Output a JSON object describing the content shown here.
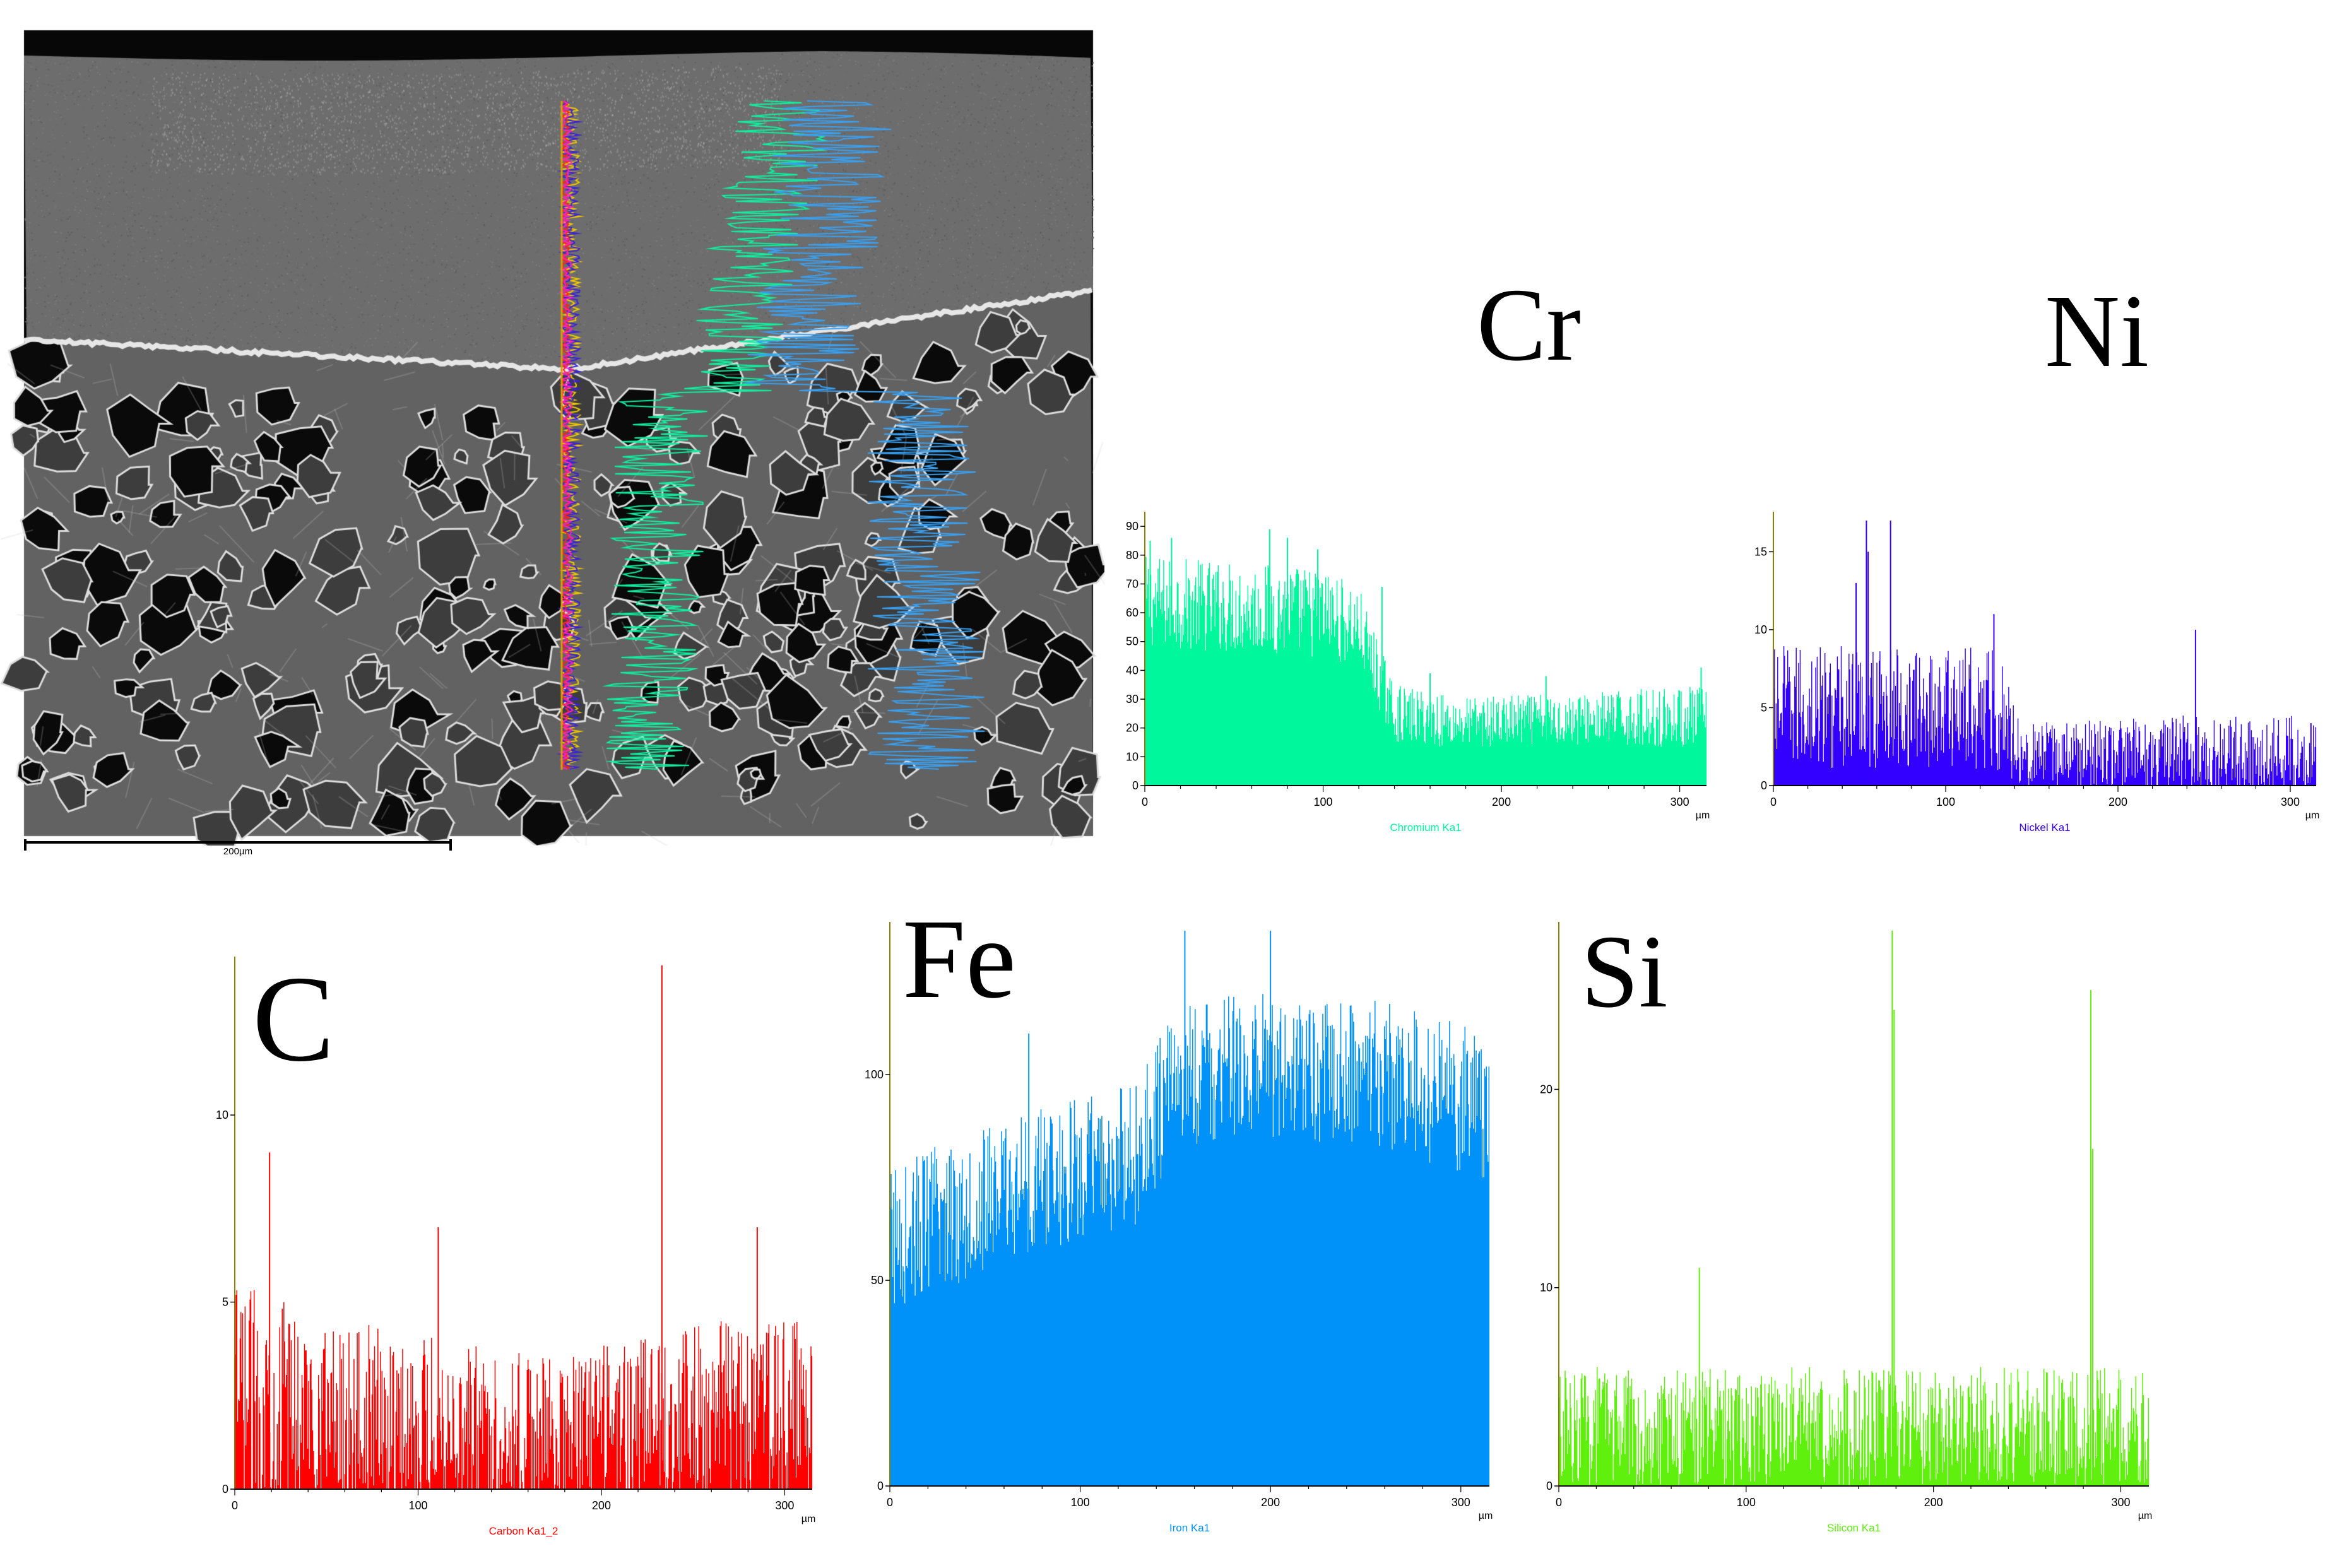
{
  "sem_image": {
    "scale_bar_label": "200µm",
    "trace_colors": {
      "Cr": "#10f0a0",
      "Ni": "#3a22d8",
      "C": "#ff2020",
      "Fe": "#3aa0f0",
      "Si": "#f0c800",
      "magenta": "#ff20c0"
    }
  },
  "chart_data": [
    {
      "type": "bar",
      "element": "Cr",
      "xlabel": "Chromium Ka1",
      "x_unit": "µm",
      "color": "#00f79c",
      "xlim": [
        0,
        315
      ],
      "ylim": [
        0,
        92
      ],
      "xticks": [
        0,
        100,
        200,
        300
      ],
      "yticks": [
        0,
        10,
        20,
        30,
        40,
        50,
        60,
        70,
        80,
        90
      ],
      "profile": [
        [
          0,
          64,
          16
        ],
        [
          100,
          60,
          16
        ],
        [
          120,
          55,
          14
        ],
        [
          140,
          25,
          10
        ],
        [
          175,
          22,
          9
        ],
        [
          240,
          23,
          9
        ],
        [
          315,
          24,
          11
        ]
      ],
      "spikes": [
        [
          3,
          85
        ],
        [
          15,
          86
        ],
        [
          70,
          89
        ],
        [
          80,
          86
        ],
        [
          97,
          82
        ],
        [
          133,
          69
        ],
        [
          160,
          39
        ],
        [
          225,
          38
        ],
        [
          312,
          41
        ],
        [
          285,
          9
        ]
      ]
    },
    {
      "type": "bar",
      "element": "Ni",
      "xlabel": "Nickel Ka1",
      "x_unit": "µm",
      "color": "#3300ff",
      "xlim": [
        0,
        315
      ],
      "ylim": [
        0,
        17
      ],
      "xticks": [
        0,
        100,
        200,
        300
      ],
      "yticks": [
        0,
        5,
        10,
        15
      ],
      "profile": [
        [
          0,
          5,
          4
        ],
        [
          130,
          5,
          4
        ],
        [
          145,
          2,
          2
        ],
        [
          240,
          2,
          2.5
        ],
        [
          315,
          2,
          2.5
        ]
      ],
      "spikes": [
        [
          54,
          17
        ],
        [
          68,
          17
        ],
        [
          55,
          15
        ],
        [
          48,
          13
        ],
        [
          128,
          11
        ],
        [
          245,
          10
        ],
        [
          312,
          4
        ]
      ]
    },
    {
      "type": "bar",
      "element": "C",
      "xlabel": "Carbon Ka1_2",
      "x_unit": "µm",
      "color": "#ff0000",
      "xlim": [
        0,
        315
      ],
      "ylim": [
        0,
        14
      ],
      "xticks": [
        0,
        100,
        200,
        300
      ],
      "yticks": [
        0,
        5,
        10
      ],
      "profile": [
        [
          0,
          2.5,
          3
        ],
        [
          60,
          2,
          2.5
        ],
        [
          180,
          1.5,
          2
        ],
        [
          240,
          2,
          2.5
        ],
        [
          315,
          2,
          2.5
        ]
      ],
      "spikes": [
        [
          233,
          14
        ],
        [
          19,
          9
        ],
        [
          111,
          7
        ],
        [
          285,
          7
        ]
      ]
    },
    {
      "type": "bar",
      "element": "Fe",
      "xlabel": "Iron Ka1",
      "x_unit": "µm",
      "color": "#0092f9",
      "xlim": [
        0,
        315
      ],
      "ylim": [
        0,
        135
      ],
      "xticks": [
        0,
        100,
        200,
        300
      ],
      "yticks": [
        0,
        50,
        100
      ],
      "profile": [
        [
          0,
          60,
          18
        ],
        [
          60,
          72,
          18
        ],
        [
          130,
          80,
          18
        ],
        [
          150,
          100,
          18
        ],
        [
          200,
          102,
          18
        ],
        [
          260,
          100,
          18
        ],
        [
          315,
          92,
          18
        ]
      ],
      "spikes": [
        [
          178,
          47
        ],
        [
          234,
          28
        ],
        [
          284,
          27
        ],
        [
          300,
          95
        ],
        [
          155,
          135
        ],
        [
          200,
          135
        ],
        [
          73,
          110
        ],
        [
          3,
          50
        ]
      ]
    },
    {
      "type": "bar",
      "element": "Si",
      "xlabel": "Silicon Ka1",
      "x_unit": "µm",
      "color": "#5ff00d",
      "xlim": [
        0,
        315
      ],
      "ylim": [
        0,
        28
      ],
      "xticks": [
        0,
        100,
        200,
        300
      ],
      "yticks": [
        0,
        10,
        20
      ],
      "profile": [
        [
          0,
          3,
          3
        ],
        [
          315,
          3,
          3
        ]
      ],
      "spikes": [
        [
          178,
          28
        ],
        [
          179,
          24
        ],
        [
          284,
          25
        ],
        [
          285,
          17
        ],
        [
          75,
          11
        ]
      ]
    }
  ]
}
